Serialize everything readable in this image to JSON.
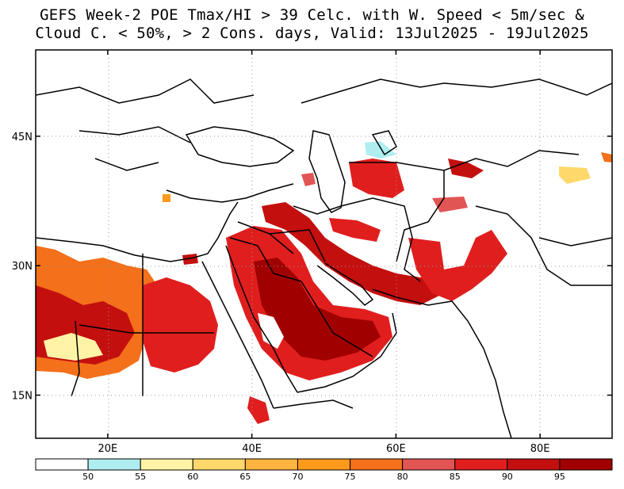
{
  "title": {
    "line1": "GEFS Week-2 POE Tmax/HI > 39 Celc. with W. Speed < 5m/sec &",
    "line2": "Cloud C. < 50%, > 2 Cons. days, Valid: 13Jul2025 - 19Jul2025"
  },
  "map": {
    "x_ticks": [
      {
        "lon": 20,
        "label": "20E"
      },
      {
        "lon": 40,
        "label": "40E"
      },
      {
        "lon": 60,
        "label": "60E"
      },
      {
        "lon": 80,
        "label": "80E"
      }
    ],
    "y_ticks": [
      {
        "lat": 45,
        "label": "45N"
      },
      {
        "lat": 30,
        "label": "30N"
      },
      {
        "lat": 15,
        "label": "15N"
      }
    ],
    "lon_range": [
      10,
      90
    ],
    "lat_range": [
      10,
      55
    ]
  },
  "colorbar": {
    "colors": [
      "#ffffff",
      "#aeeef0",
      "#fff3a6",
      "#ffd86b",
      "#ffb340",
      "#ff9a1a",
      "#f4701a",
      "#e25555",
      "#e01e1e",
      "#c40f0f",
      "#a00000"
    ],
    "labels": [
      "50",
      "55",
      "60",
      "65",
      "70",
      "75",
      "80",
      "85",
      "90",
      "95"
    ]
  }
}
